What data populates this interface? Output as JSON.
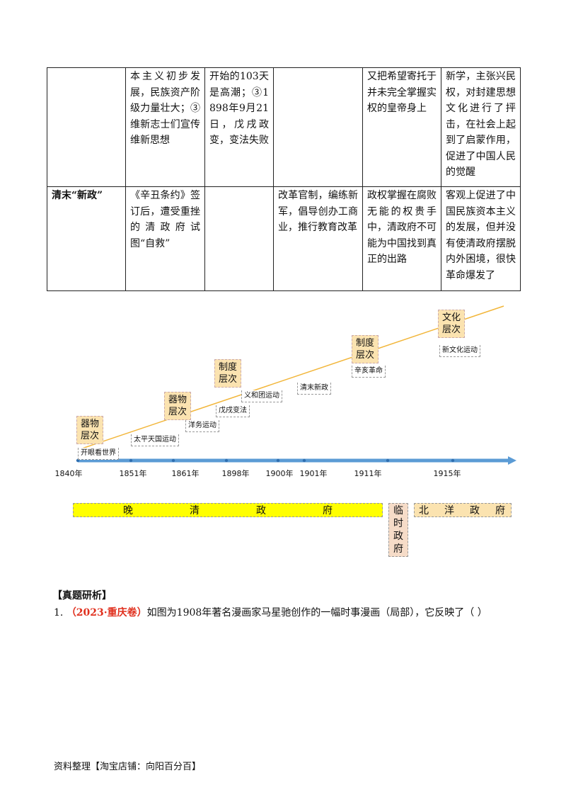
{
  "table": {
    "rows": [
      [
        null,
        "本主义初步发展，民族资产阶级力量壮大；③维新志士们宣传维新思想",
        "开始的103天是高潮；③1898年9月21日，戊戌政变，变法失败",
        null,
        "又把希望寄托于并未完全掌握实权的皇帝身上",
        "新学，主张兴民权，对封建思想文化进行了抨击，在社会上起到了启蒙作用，促进了中国人民的觉醒"
      ],
      [
        "清末“新政”",
        "《辛丑条约》签订后，遭受重挫的清政府试图“自救”",
        null,
        "改革官制，编练新军，倡导创办工商业，推行教育改革",
        "政权掌握在腐败无能的权贵手中，清政府不可能为中国找到真正的出路",
        "客观上促进了中国民族资本主义的发展，但并没有使清政府摆脱内外困境，很快革命爆发了"
      ]
    ]
  },
  "timeline": {
    "years": [
      "1840年",
      "1851年",
      "1861年",
      "1898年",
      "1900年",
      "1901年",
      "1911年",
      "1915年"
    ],
    "levels": [
      "器物层次",
      "器物层次",
      "制度层次",
      "制度层次",
      "文化层次"
    ],
    "events": [
      "开眼看世界",
      "太平天国运动",
      "洋务运动",
      "戊戌变法",
      "义和团运动",
      "清末新政",
      "辛亥革命",
      "新文化运动"
    ],
    "eras": [
      "晚清政府",
      "临时政府",
      "北洋政府"
    ]
  },
  "section": {
    "heading": "【真题研析】",
    "question": {
      "number": "1.",
      "source": "（2023·重庆卷）",
      "text": "如图为1908年著名漫画家马星驰创作的一幅时事漫画（局部），它反映了（ ）"
    }
  },
  "footer": "资料整理【淘宝店铺：向阳百分百】"
}
